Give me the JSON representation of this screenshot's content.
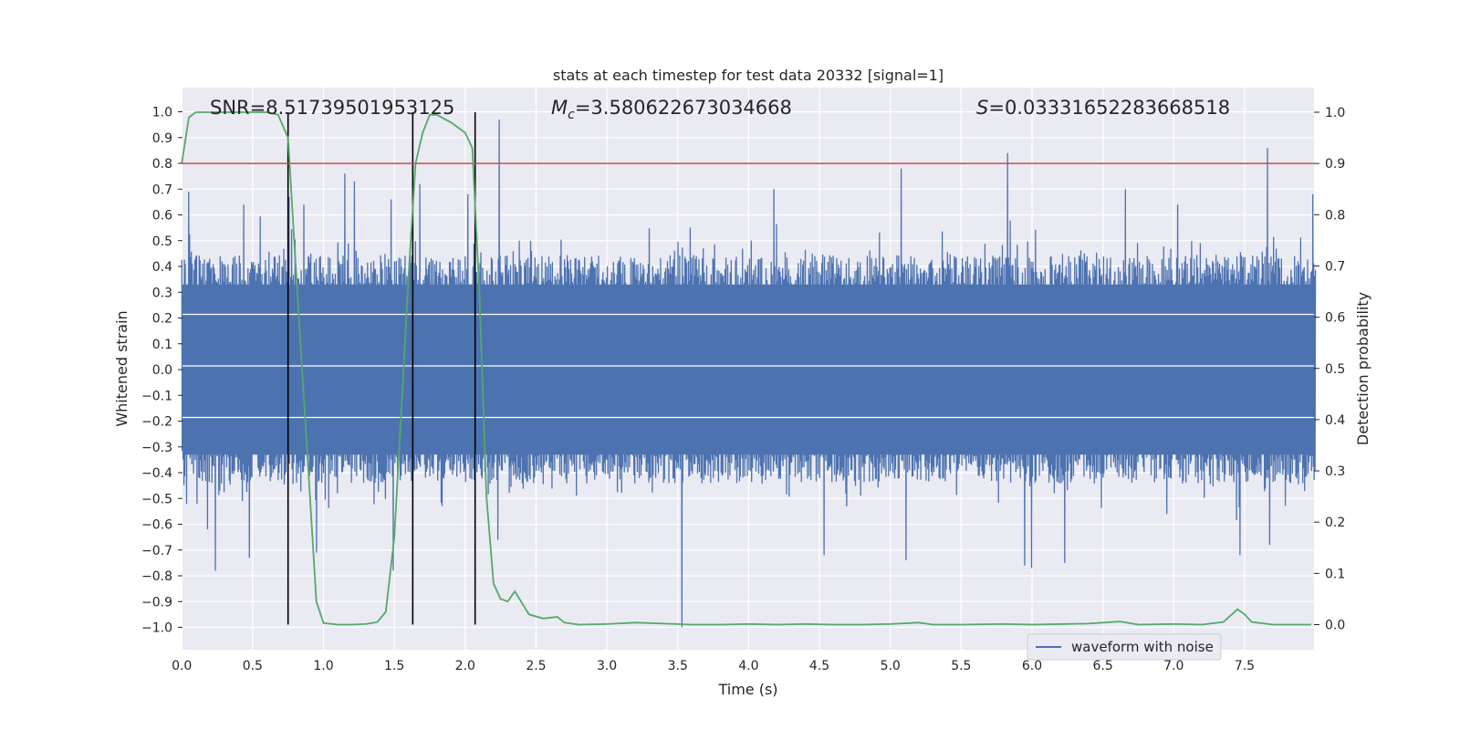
{
  "chart_data": {
    "type": "line",
    "title": "stats at each timestep for test data 20332 [signal=1]",
    "xlabel": "Time (s)",
    "ylabel_left": "Whitened strain",
    "ylabel_right": "Detection probability",
    "xlim": [
      0.0,
      8.0
    ],
    "ylim_left": [
      -1.1,
      1.1
    ],
    "ylim_right": [
      -0.05,
      1.04
    ],
    "x_ticks": [
      0.0,
      0.5,
      1.0,
      1.5,
      2.0,
      2.5,
      3.0,
      3.5,
      4.0,
      4.5,
      5.0,
      5.5,
      6.0,
      6.5,
      7.0,
      7.5
    ],
    "y_ticks_left": [
      1.0,
      0.9,
      0.8,
      0.7,
      0.6,
      0.5,
      0.4,
      0.3,
      0.2,
      0.1,
      0.0,
      -0.1,
      -0.2,
      -0.3,
      -0.4,
      -0.5,
      -0.6,
      -0.7,
      -0.8,
      -0.9,
      -1.0
    ],
    "y_ticks_right": [
      1.0,
      0.9,
      0.8,
      0.7,
      0.6,
      0.5,
      0.4,
      0.3,
      0.2,
      0.1,
      0.0
    ],
    "annotations": {
      "snr": "SNR=8.51739501953125",
      "mc_symbol": "M",
      "mc_sub": "c",
      "mc_value": "=3.580622673034668",
      "s_symbol": "S",
      "s_value": "=0.03331652283668518"
    },
    "legend": {
      "label": "waveform with noise",
      "position": "lower-right"
    },
    "threshold": {
      "value": 0.9,
      "axis": "right",
      "color": "#c44e52"
    },
    "vertical_lines": [
      0.75,
      1.63,
      2.07
    ],
    "waveform": {
      "name": "waveform with noise",
      "color": "#4c72b0",
      "x_range": [
        0.0,
        8.0
      ],
      "core_amplitude": 0.37,
      "spike_peaks": [
        {
          "t": 0.05,
          "v": 0.69
        },
        {
          "t": 0.18,
          "v": -0.62
        },
        {
          "t": 0.24,
          "v": -0.78
        },
        {
          "t": 0.44,
          "v": 0.64
        },
        {
          "t": 0.48,
          "v": -0.73
        },
        {
          "t": 0.76,
          "v": 0.67
        },
        {
          "t": 0.86,
          "v": 0.64
        },
        {
          "t": 0.95,
          "v": -0.71
        },
        {
          "t": 1.15,
          "v": 0.76
        },
        {
          "t": 1.22,
          "v": 0.73
        },
        {
          "t": 1.48,
          "v": 0.66
        },
        {
          "t": 1.49,
          "v": -0.78
        },
        {
          "t": 1.68,
          "v": 0.72
        },
        {
          "t": 2.02,
          "v": 0.68
        },
        {
          "t": 2.24,
          "v": 0.97
        },
        {
          "t": 2.23,
          "v": -0.66
        },
        {
          "t": 3.53,
          "v": -1.0
        },
        {
          "t": 4.18,
          "v": 0.7
        },
        {
          "t": 4.53,
          "v": -0.72
        },
        {
          "t": 5.08,
          "v": 0.78
        },
        {
          "t": 5.11,
          "v": -0.74
        },
        {
          "t": 5.83,
          "v": 0.84
        },
        {
          "t": 5.95,
          "v": -0.76
        },
        {
          "t": 6.0,
          "v": -0.77
        },
        {
          "t": 6.23,
          "v": -0.75
        },
        {
          "t": 6.66,
          "v": 0.7
        },
        {
          "t": 7.03,
          "v": 0.64
        },
        {
          "t": 7.47,
          "v": -0.72
        },
        {
          "t": 7.66,
          "v": 0.86
        },
        {
          "t": 7.68,
          "v": -0.68
        },
        {
          "t": 7.98,
          "v": 0.68
        }
      ]
    },
    "probability": {
      "name": "detection probability",
      "color": "#55a868",
      "x": [
        0.0,
        0.05,
        0.1,
        0.2,
        0.3,
        0.4,
        0.5,
        0.6,
        0.68,
        0.75,
        0.8,
        0.9,
        0.95,
        1.0,
        1.1,
        1.2,
        1.3,
        1.38,
        1.44,
        1.5,
        1.55,
        1.6,
        1.65,
        1.7,
        1.75,
        1.8,
        1.9,
        2.0,
        2.05,
        2.1,
        2.15,
        2.2,
        2.25,
        2.3,
        2.35,
        2.45,
        2.55,
        2.65,
        2.7,
        2.8,
        3.0,
        3.2,
        3.4,
        3.6,
        3.8,
        4.0,
        4.2,
        4.4,
        4.6,
        4.8,
        5.0,
        5.2,
        5.3,
        5.5,
        5.8,
        6.0,
        6.4,
        6.62,
        6.75,
        7.0,
        7.2,
        7.35,
        7.45,
        7.5,
        7.55,
        7.7,
        7.97
      ],
      "y": [
        0.9,
        0.99,
        1.0,
        1.0,
        1.0,
        1.0,
        1.0,
        1.0,
        0.995,
        0.95,
        0.72,
        0.27,
        0.045,
        0.003,
        0.0,
        0.0,
        0.001,
        0.005,
        0.025,
        0.17,
        0.42,
        0.68,
        0.9,
        0.96,
        0.995,
        0.995,
        0.98,
        0.96,
        0.93,
        0.65,
        0.25,
        0.08,
        0.05,
        0.045,
        0.065,
        0.02,
        0.012,
        0.015,
        0.004,
        0.0,
        0.001,
        0.004,
        0.002,
        0.0,
        0.0,
        0.001,
        0.0,
        0.001,
        0.0,
        0.0,
        0.001,
        0.004,
        0.0,
        0.0,
        0.001,
        0.0,
        0.002,
        0.006,
        0.0,
        0.001,
        0.0,
        0.005,
        0.03,
        0.02,
        0.005,
        0.0,
        0.0
      ]
    }
  }
}
